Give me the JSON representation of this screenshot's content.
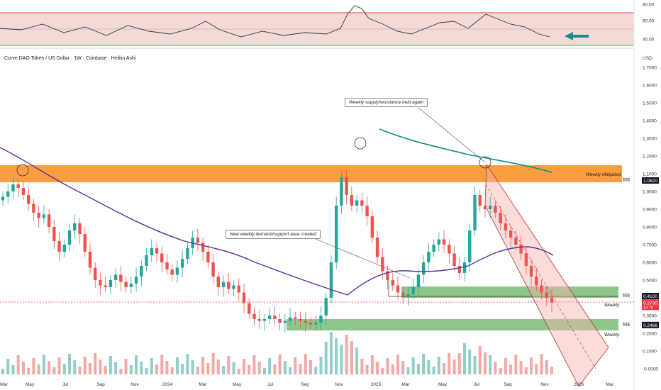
{
  "chart_data": {
    "type": "candlestick",
    "title": "Curve DAO Token / US Dollar · 1W · Coinbase · Heikin Ashi",
    "currency": "USD",
    "x_ticks": [
      "Mar",
      "May",
      "Jul",
      "Sep",
      "Nov",
      "2024",
      "Mar",
      "May",
      "Jul",
      "Sep",
      "Nov",
      "2025",
      "Mar",
      "May",
      "Jul",
      "Sep",
      "Nov",
      "2026",
      "Mar"
    ],
    "y_ticks": [
      "1.7000",
      "1.6000",
      "1.5000",
      "1.4000",
      "1.3000",
      "1.2000",
      "1.1000",
      "1.0000",
      "0.9000",
      "0.8000",
      "0.7000",
      "0.6000",
      "0.5000",
      "0.4000",
      "0.3000",
      "0.2000",
      "0.1000",
      "-0.0000"
    ],
    "ylim": [
      -0.04,
      1.8
    ],
    "rsi_panel": {
      "ticks": [
        "80.00",
        "60.00",
        "40.00"
      ],
      "upper": 70,
      "lower": 30
    },
    "price_badges": [
      {
        "text": "$$$",
        "value": "1.0620",
        "y": 1.062,
        "bg": "#131722",
        "fg": "#ffffff"
      },
      {
        "text": "$$$",
        "value": "0.4100",
        "y": 0.41,
        "bg": "#131722",
        "fg": "#ffffff"
      },
      {
        "text": "",
        "value": "0.3730",
        "sub": "1d 7h",
        "y": 0.373,
        "bg": "#f23645",
        "fg": "#ffffff"
      },
      {
        "text": "$$$",
        "value": "0.2466",
        "y": 0.2466,
        "bg": "#131722",
        "fg": "#ffffff"
      }
    ],
    "zone_labels": [
      "Weekly Mitigated",
      "Weekly",
      "Weekly"
    ],
    "annotations": [
      "Weekly supply/resistance held again",
      "New weekly demand/support area created"
    ],
    "colors": {
      "up": "#26a69a",
      "down": "#ef5350",
      "ma_slow": "#0f8a8a",
      "ma_fast": "#5b2fa0",
      "supply": "#f57c00",
      "demand": "#4caf50",
      "rsi_line": "#333333"
    },
    "candles": [
      {
        "o": 0.95,
        "c": 0.97
      },
      {
        "o": 0.97,
        "c": 1.0
      },
      {
        "o": 1.0,
        "c": 1.04
      },
      {
        "o": 1.04,
        "c": 1.02
      },
      {
        "o": 1.02,
        "c": 0.98
      },
      {
        "o": 0.98,
        "c": 0.93
      },
      {
        "o": 0.93,
        "c": 0.88
      },
      {
        "o": 0.88,
        "c": 0.85
      },
      {
        "o": 0.85,
        "c": 0.87
      },
      {
        "o": 0.87,
        "c": 0.8
      },
      {
        "o": 0.8,
        "c": 0.72
      },
      {
        "o": 0.72,
        "c": 0.66
      },
      {
        "o": 0.66,
        "c": 0.7
      },
      {
        "o": 0.7,
        "c": 0.78
      },
      {
        "o": 0.78,
        "c": 0.82
      },
      {
        "o": 0.82,
        "c": 0.76
      },
      {
        "o": 0.76,
        "c": 0.66
      },
      {
        "o": 0.66,
        "c": 0.57
      },
      {
        "o": 0.57,
        "c": 0.5
      },
      {
        "o": 0.5,
        "c": 0.47
      },
      {
        "o": 0.47,
        "c": 0.46
      },
      {
        "o": 0.46,
        "c": 0.5
      },
      {
        "o": 0.5,
        "c": 0.53
      },
      {
        "o": 0.53,
        "c": 0.49
      },
      {
        "o": 0.49,
        "c": 0.46
      },
      {
        "o": 0.46,
        "c": 0.48
      },
      {
        "o": 0.48,
        "c": 0.52
      },
      {
        "o": 0.52,
        "c": 0.58
      },
      {
        "o": 0.58,
        "c": 0.64
      },
      {
        "o": 0.64,
        "c": 0.68
      },
      {
        "o": 0.68,
        "c": 0.65
      },
      {
        "o": 0.65,
        "c": 0.6
      },
      {
        "o": 0.6,
        "c": 0.56
      },
      {
        "o": 0.56,
        "c": 0.53
      },
      {
        "o": 0.53,
        "c": 0.57
      },
      {
        "o": 0.57,
        "c": 0.62
      },
      {
        "o": 0.62,
        "c": 0.68
      },
      {
        "o": 0.68,
        "c": 0.74
      },
      {
        "o": 0.74,
        "c": 0.71
      },
      {
        "o": 0.71,
        "c": 0.66
      },
      {
        "o": 0.66,
        "c": 0.6
      },
      {
        "o": 0.6,
        "c": 0.52
      },
      {
        "o": 0.52,
        "c": 0.46
      },
      {
        "o": 0.46,
        "c": 0.49
      },
      {
        "o": 0.49,
        "c": 0.45
      },
      {
        "o": 0.45,
        "c": 0.47
      },
      {
        "o": 0.47,
        "c": 0.43
      },
      {
        "o": 0.43,
        "c": 0.37
      },
      {
        "o": 0.37,
        "c": 0.31
      },
      {
        "o": 0.31,
        "c": 0.28
      },
      {
        "o": 0.28,
        "c": 0.27
      },
      {
        "o": 0.27,
        "c": 0.28
      },
      {
        "o": 0.28,
        "c": 0.3
      },
      {
        "o": 0.3,
        "c": 0.28
      },
      {
        "o": 0.28,
        "c": 0.26
      },
      {
        "o": 0.26,
        "c": 0.27
      },
      {
        "o": 0.27,
        "c": 0.29
      },
      {
        "o": 0.29,
        "c": 0.28
      },
      {
        "o": 0.28,
        "c": 0.27
      },
      {
        "o": 0.27,
        "c": 0.26
      },
      {
        "o": 0.26,
        "c": 0.25
      },
      {
        "o": 0.25,
        "c": 0.26
      },
      {
        "o": 0.26,
        "c": 0.3
      },
      {
        "o": 0.3,
        "c": 0.4
      },
      {
        "o": 0.4,
        "c": 0.6
      },
      {
        "o": 0.6,
        "c": 0.92
      },
      {
        "o": 0.92,
        "c": 1.08
      },
      {
        "o": 1.08,
        "c": 0.98
      },
      {
        "o": 0.98,
        "c": 0.92
      },
      {
        "o": 0.92,
        "c": 0.95
      },
      {
        "o": 0.95,
        "c": 0.92
      },
      {
        "o": 0.92,
        "c": 0.86
      },
      {
        "o": 0.86,
        "c": 0.74
      },
      {
        "o": 0.74,
        "c": 0.63
      },
      {
        "o": 0.63,
        "c": 0.55
      },
      {
        "o": 0.55,
        "c": 0.5
      },
      {
        "o": 0.5,
        "c": 0.47
      },
      {
        "o": 0.47,
        "c": 0.43
      },
      {
        "o": 0.43,
        "c": 0.41
      },
      {
        "o": 0.41,
        "c": 0.42
      },
      {
        "o": 0.42,
        "c": 0.46
      },
      {
        "o": 0.46,
        "c": 0.53
      },
      {
        "o": 0.53,
        "c": 0.6
      },
      {
        "o": 0.6,
        "c": 0.66
      },
      {
        "o": 0.66,
        "c": 0.7
      },
      {
        "o": 0.7,
        "c": 0.73
      },
      {
        "o": 0.73,
        "c": 0.7
      },
      {
        "o": 0.7,
        "c": 0.65
      },
      {
        "o": 0.65,
        "c": 0.58
      },
      {
        "o": 0.58,
        "c": 0.54
      },
      {
        "o": 0.54,
        "c": 0.6
      },
      {
        "o": 0.6,
        "c": 0.78
      },
      {
        "o": 0.78,
        "c": 0.98
      },
      {
        "o": 0.98,
        "c": 0.92
      },
      {
        "o": 0.92,
        "c": 0.9
      },
      {
        "o": 0.9,
        "c": 0.92
      },
      {
        "o": 0.92,
        "c": 0.88
      },
      {
        "o": 0.88,
        "c": 0.82
      },
      {
        "o": 0.82,
        "c": 0.78
      },
      {
        "o": 0.78,
        "c": 0.74
      },
      {
        "o": 0.74,
        "c": 0.7
      },
      {
        "o": 0.7,
        "c": 0.65
      },
      {
        "o": 0.65,
        "c": 0.58
      },
      {
        "o": 0.58,
        "c": 0.52
      },
      {
        "o": 0.52,
        "c": 0.47
      },
      {
        "o": 0.47,
        "c": 0.43
      },
      {
        "o": 0.43,
        "c": 0.4
      },
      {
        "o": 0.4,
        "c": 0.373
      }
    ]
  }
}
